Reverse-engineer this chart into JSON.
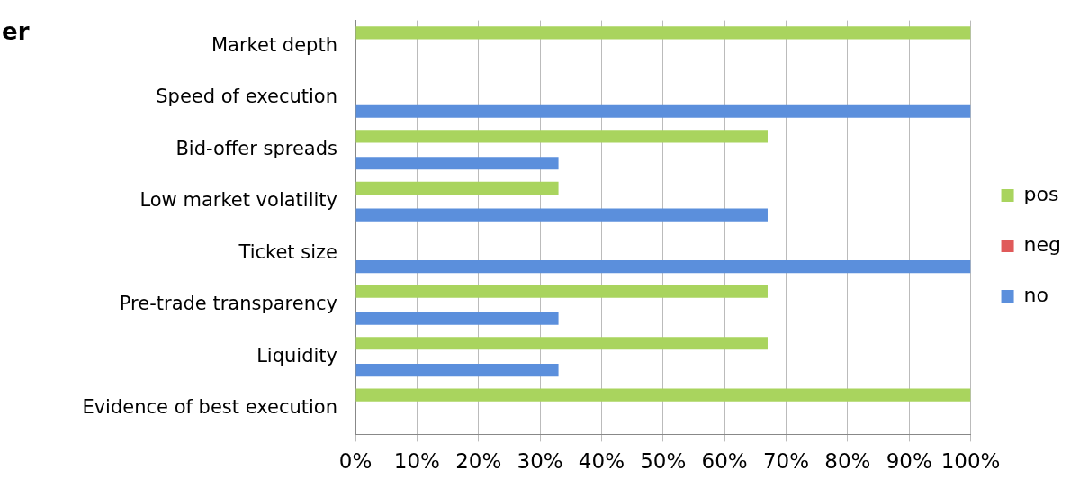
{
  "chart_data": {
    "type": "bar",
    "orientation": "horizontal",
    "title": "er",
    "categories": [
      "Market depth",
      "Speed of execution",
      "Bid-offer spreads",
      "Low market volatility",
      "Ticket size",
      "Pre-trade transparency",
      "Liquidity",
      "Evidence of best execution"
    ],
    "series": [
      {
        "name": "pos",
        "color": "#a9d45e",
        "values": [
          100,
          null,
          67,
          33,
          null,
          67,
          67,
          100
        ]
      },
      {
        "name": "neg",
        "color": "#e05a5a",
        "values": [
          null,
          null,
          null,
          null,
          null,
          null,
          null,
          null
        ]
      },
      {
        "name": "no",
        "color": "#5b8fdc",
        "values": [
          null,
          100,
          33,
          67,
          100,
          33,
          33,
          null
        ]
      }
    ],
    "xlim": [
      0,
      100
    ],
    "xticks": [
      {
        "value": 0,
        "label": "0%"
      },
      {
        "value": 10,
        "label": "10%"
      },
      {
        "value": 20,
        "label": "20%"
      },
      {
        "value": 30,
        "label": "30%"
      },
      {
        "value": 40,
        "label": "40%"
      },
      {
        "value": 50,
        "label": "50%"
      },
      {
        "value": 60,
        "label": "60%"
      },
      {
        "value": 70,
        "label": "70%"
      },
      {
        "value": 80,
        "label": "80%"
      },
      {
        "value": 90,
        "label": "90%"
      },
      {
        "value": 100,
        "label": "100%"
      }
    ],
    "grid": "x",
    "legend": "right"
  }
}
